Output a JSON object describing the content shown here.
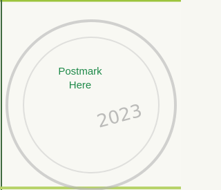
{
  "postmark_box": {
    "label_lines": [
      "Postmark",
      "Here"
    ],
    "stamp_text": "2023"
  }
}
